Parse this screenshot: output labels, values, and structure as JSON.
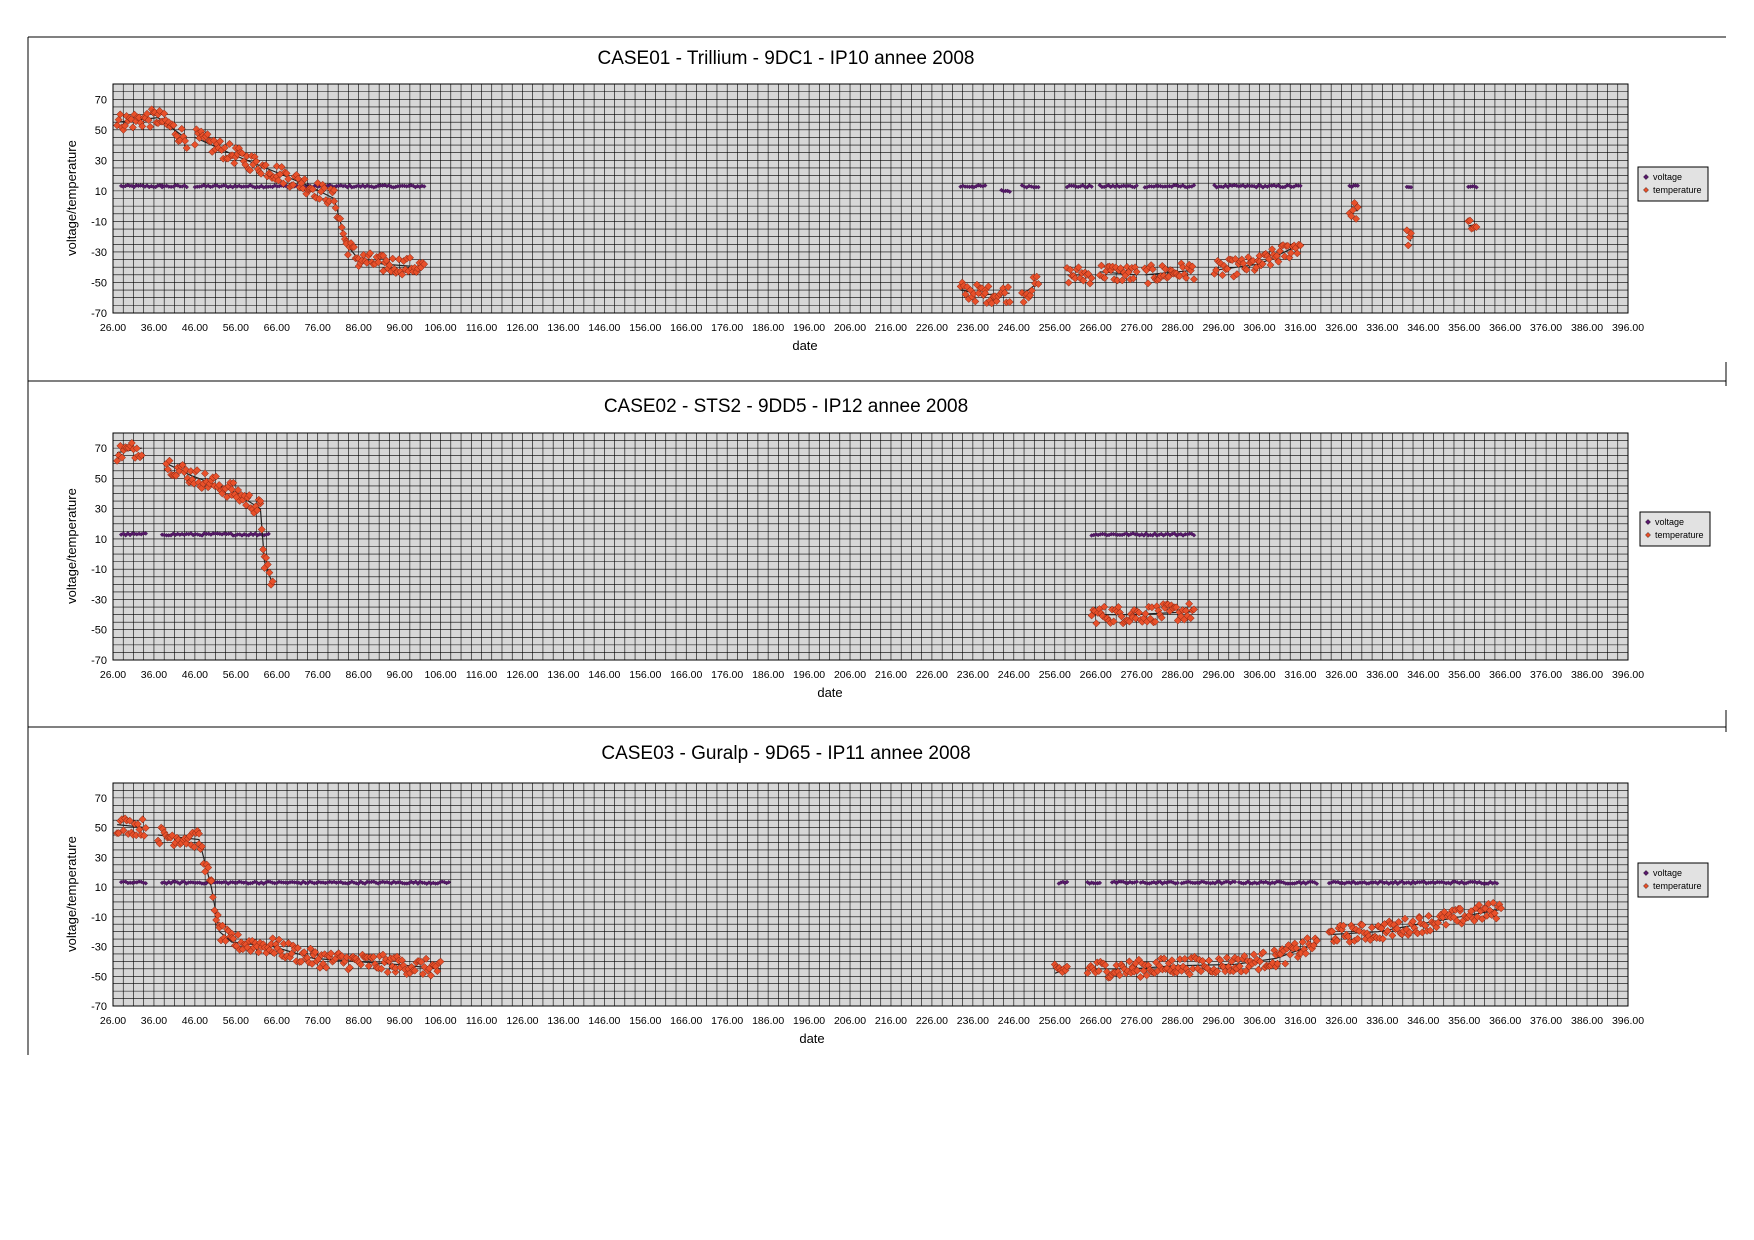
{
  "chart_data": [
    {
      "type": "scatter",
      "title": "CASE01 - Trillium - 9DC1 - IP10  annee 2008",
      "xlabel": "date",
      "ylabel": "voltage/temperature",
      "xlim": [
        26,
        396
      ],
      "ylim": [
        -70,
        80
      ],
      "x_ticks": [
        "26.00",
        "36.00",
        "46.00",
        "56.00",
        "66.00",
        "76.00",
        "86.00",
        "96.00",
        "106.00",
        "116.00",
        "126.00",
        "136.00",
        "146.00",
        "156.00",
        "166.00",
        "176.00",
        "186.00",
        "196.00",
        "206.00",
        "216.00",
        "226.00",
        "236.00",
        "246.00",
        "256.00",
        "266.00",
        "276.00",
        "286.00",
        "296.00",
        "306.00",
        "316.00",
        "326.00",
        "336.00",
        "346.00",
        "356.00",
        "366.00",
        "376.00",
        "386.00",
        "396.00"
      ],
      "y_ticks": [
        "70",
        "50",
        "30",
        "10",
        "-10",
        "-30",
        "-50",
        "-70"
      ],
      "grid": true,
      "legend": "right",
      "series": [
        {
          "name": "voltage",
          "color": "#5a1a6e",
          "segments": [
            {
              "x": [
                28,
                38
              ],
              "y": [
                13,
                13
              ]
            },
            {
              "x": [
                38,
                44
              ],
              "y": [
                13,
                13
              ]
            },
            {
              "x": [
                46,
                72
              ],
              "y": [
                13,
                13
              ]
            },
            {
              "x": [
                72,
                102
              ],
              "y": [
                13,
                13
              ]
            },
            {
              "x": [
                233,
                239
              ],
              "y": [
                13,
                13
              ]
            },
            {
              "x": [
                243,
                245
              ],
              "y": [
                10,
                10
              ]
            },
            {
              "x": [
                248,
                252
              ],
              "y": [
                13,
                13
              ]
            },
            {
              "x": [
                259,
                265
              ],
              "y": [
                13,
                13
              ]
            },
            {
              "x": [
                267,
                276
              ],
              "y": [
                13,
                13
              ]
            },
            {
              "x": [
                278,
                290
              ],
              "y": [
                13,
                13
              ]
            },
            {
              "x": [
                295,
                316
              ],
              "y": [
                13,
                13
              ]
            },
            {
              "x": [
                328,
                330
              ],
              "y": [
                13,
                13
              ]
            },
            {
              "x": [
                342,
                343
              ],
              "y": [
                13,
                13
              ]
            },
            {
              "x": [
                357,
                359
              ],
              "y": [
                13,
                13
              ]
            }
          ]
        },
        {
          "name": "temperature",
          "color": "#e8502a",
          "segments": [
            {
              "x": [
                27,
                37,
                40,
                44
              ],
              "y": [
                55,
                58,
                52,
                44
              ]
            },
            {
              "x": [
                46,
                56,
                66,
                74,
                80,
                83,
                86,
                92,
                102
              ],
              "y": [
                45,
                33,
                22,
                13,
                5,
                -25,
                -35,
                -38,
                -40
              ]
            },
            {
              "x": [
                233,
                239,
                245
              ],
              "y": [
                -55,
                -58,
                -57
              ]
            },
            {
              "x": [
                248,
                252
              ],
              "y": [
                -58,
                -50
              ]
            },
            {
              "x": [
                259,
                265
              ],
              "y": [
                -45,
                -45
              ]
            },
            {
              "x": [
                267,
                276
              ],
              "y": [
                -43,
                -45
              ]
            },
            {
              "x": [
                278,
                290
              ],
              "y": [
                -45,
                -42
              ]
            },
            {
              "x": [
                295,
                306,
                316
              ],
              "y": [
                -42,
                -38,
                -25
              ]
            },
            {
              "x": [
                328,
                330
              ],
              "y": [
                -3,
                -3
              ]
            },
            {
              "x": [
                342,
                343
              ],
              "y": [
                -20,
                -23
              ]
            },
            {
              "x": [
                357,
                359
              ],
              "y": [
                -13,
                -12
              ]
            }
          ]
        }
      ]
    },
    {
      "type": "scatter",
      "title": "CASE02 - STS2 - 9DD5 - IP12  annee 2008",
      "xlabel": "date",
      "ylabel": "voltage/temperature",
      "xlim": [
        26,
        396
      ],
      "ylim": [
        -70,
        80
      ],
      "x_ticks": [
        "26.00",
        "36.00",
        "46.00",
        "56.00",
        "66.00",
        "76.00",
        "86.00",
        "96.00",
        "106.00",
        "116.00",
        "126.00",
        "136.00",
        "146.00",
        "156.00",
        "166.00",
        "176.00",
        "186.00",
        "196.00",
        "206.00",
        "216.00",
        "226.00",
        "236.00",
        "246.00",
        "256.00",
        "266.00",
        "276.00",
        "286.00",
        "296.00",
        "306.00",
        "316.00",
        "326.00",
        "336.00",
        "346.00",
        "356.00",
        "366.00",
        "376.00",
        "386.00",
        "396.00"
      ],
      "y_ticks": [
        "70",
        "50",
        "30",
        "10",
        "-10",
        "-30",
        "-50",
        "-70"
      ],
      "grid": true,
      "legend": "right",
      "series": [
        {
          "name": "voltage",
          "color": "#5a1a6e",
          "segments": [
            {
              "x": [
                28,
                34
              ],
              "y": [
                13,
                13
              ]
            },
            {
              "x": [
                38,
                64
              ],
              "y": [
                13,
                13
              ]
            },
            {
              "x": [
                265,
                290
              ],
              "y": [
                13,
                13
              ]
            }
          ]
        },
        {
          "name": "temperature",
          "color": "#e8502a",
          "segments": [
            {
              "x": [
                27,
                33
              ],
              "y": [
                67,
                70
              ]
            },
            {
              "x": [
                39,
                45,
                55,
                62,
                63,
                65
              ],
              "y": [
                60,
                52,
                42,
                30,
                -5,
                -20
              ]
            },
            {
              "x": [
                265,
                275,
                290
              ],
              "y": [
                -40,
                -40,
                -38
              ]
            }
          ]
        }
      ]
    },
    {
      "type": "scatter",
      "title": "CASE03 - Guralp - 9D65 - IP11  annee 2008",
      "xlabel": "date",
      "ylabel": "voltage/temperature",
      "xlim": [
        26,
        396
      ],
      "ylim": [
        -70,
        80
      ],
      "x_ticks": [
        "26.00",
        "36.00",
        "46.00",
        "56.00",
        "66.00",
        "76.00",
        "86.00",
        "96.00",
        "106.00",
        "116.00",
        "126.00",
        "136.00",
        "146.00",
        "156.00",
        "166.00",
        "176.00",
        "186.00",
        "196.00",
        "206.00",
        "216.00",
        "226.00",
        "236.00",
        "246.00",
        "256.00",
        "266.00",
        "276.00",
        "286.00",
        "296.00",
        "306.00",
        "316.00",
        "326.00",
        "336.00",
        "346.00",
        "356.00",
        "366.00",
        "376.00",
        "386.00",
        "396.00"
      ],
      "y_ticks": [
        "70",
        "50",
        "30",
        "10",
        "-10",
        "-30",
        "-50",
        "-70"
      ],
      "grid": true,
      "legend": "right",
      "series": [
        {
          "name": "voltage",
          "color": "#5a1a6e",
          "segments": [
            {
              "x": [
                28,
                34
              ],
              "y": [
                13,
                13
              ]
            },
            {
              "x": [
                38,
                108
              ],
              "y": [
                13,
                13
              ]
            },
            {
              "x": [
                257,
                259
              ],
              "y": [
                13,
                13
              ]
            },
            {
              "x": [
                264,
                267
              ],
              "y": [
                13,
                13
              ]
            },
            {
              "x": [
                270,
                276
              ],
              "y": [
                13,
                13
              ]
            },
            {
              "x": [
                277,
                286
              ],
              "y": [
                13,
                13
              ]
            },
            {
              "x": [
                287,
                300
              ],
              "y": [
                13,
                13
              ]
            },
            {
              "x": [
                301,
                320
              ],
              "y": [
                13,
                13
              ]
            },
            {
              "x": [
                323,
                364
              ],
              "y": [
                13,
                13
              ]
            }
          ]
        },
        {
          "name": "temperature",
          "color": "#e8502a",
          "segments": [
            {
              "x": [
                27,
                34
              ],
              "y": [
                52,
                50
              ]
            },
            {
              "x": [
                37,
                47,
                50,
                52,
                55,
                65,
                75,
                85,
                95,
                106
              ],
              "y": [
                45,
                42,
                10,
                -20,
                -27,
                -30,
                -38,
                -40,
                -42,
                -45
              ]
            },
            {
              "x": [
                256,
                259
              ],
              "y": [
                -48,
                -45
              ]
            },
            {
              "x": [
                264,
                275,
                285,
                300,
                310,
                320
              ],
              "y": [
                -45,
                -45,
                -43,
                -42,
                -38,
                -28
              ]
            },
            {
              "x": [
                323,
                335,
                345,
                355,
                365
              ],
              "y": [
                -22,
                -20,
                -15,
                -10,
                -5
              ]
            }
          ]
        }
      ]
    }
  ]
}
